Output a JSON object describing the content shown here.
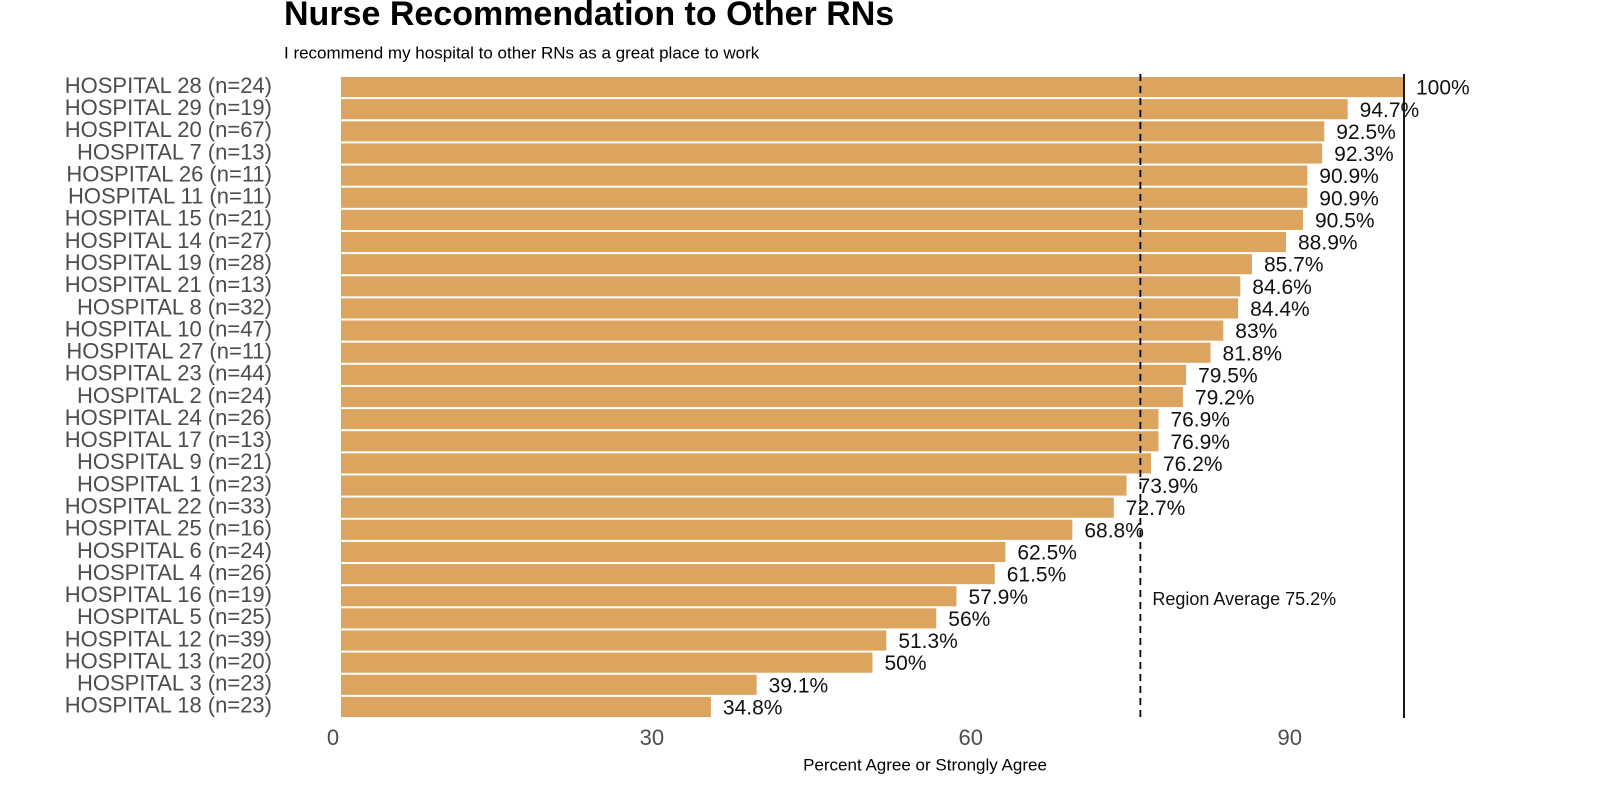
{
  "chart_data": {
    "type": "barh",
    "title": "Nurse Recommendation to Other RNs",
    "subtitle": "I recommend my hospital to other RNs as a great place to work",
    "x_label": "Percent Agree or Strongly Agree",
    "categories": [
      "HOSPITAL 28 (n=24)",
      "HOSPITAL 29 (n=19)",
      "HOSPITAL 20 (n=67)",
      "HOSPITAL 7 (n=13)",
      "HOSPITAL 26 (n=11)",
      "HOSPITAL 11 (n=11)",
      "HOSPITAL 15 (n=21)",
      "HOSPITAL 14 (n=27)",
      "HOSPITAL 19 (n=28)",
      "HOSPITAL 21 (n=13)",
      "HOSPITAL 8 (n=32)",
      "HOSPITAL 10 (n=47)",
      "HOSPITAL 27 (n=11)",
      "HOSPITAL 23 (n=44)",
      "HOSPITAL 2 (n=24)",
      "HOSPITAL 24 (n=26)",
      "HOSPITAL 17 (n=13)",
      "HOSPITAL 9 (n=21)",
      "HOSPITAL 1 (n=23)",
      "HOSPITAL 22 (n=33)",
      "HOSPITAL 25 (n=16)",
      "HOSPITAL 6 (n=24)",
      "HOSPITAL 4 (n=26)",
      "HOSPITAL 16 (n=19)",
      "HOSPITAL 5 (n=25)",
      "HOSPITAL 12 (n=39)",
      "HOSPITAL 13 (n=20)",
      "HOSPITAL 3 (n=23)",
      "HOSPITAL 18 (n=23)"
    ],
    "values": [
      100,
      94.7,
      92.5,
      92.3,
      90.9,
      90.9,
      90.5,
      88.9,
      85.7,
      84.6,
      84.4,
      83,
      81.8,
      79.5,
      79.2,
      76.9,
      76.9,
      76.2,
      73.9,
      72.7,
      68.8,
      62.5,
      61.5,
      57.9,
      56,
      51.3,
      50,
      39.1,
      34.8
    ],
    "value_labels": [
      "100%",
      "94.7%",
      "92.5%",
      "92.3%",
      "90.9%",
      "90.9%",
      "90.5%",
      "88.9%",
      "85.7%",
      "84.6%",
      "84.4%",
      "83%",
      "81.8%",
      "79.5%",
      "79.2%",
      "76.9%",
      "76.9%",
      "76.2%",
      "73.9%",
      "72.7%",
      "68.8%",
      "62.5%",
      "61.5%",
      "57.9%",
      "56%",
      "51.3%",
      "50%",
      "39.1%",
      "34.8%"
    ],
    "color": "#dca55f",
    "xlim": [
      0,
      112
    ],
    "xticks": [
      0,
      30,
      60,
      90
    ],
    "reference_lines": [
      {
        "value": 75.2,
        "style": "dashed",
        "label": "Region Average 75.2%"
      },
      {
        "value": 100,
        "style": "solid"
      }
    ]
  }
}
